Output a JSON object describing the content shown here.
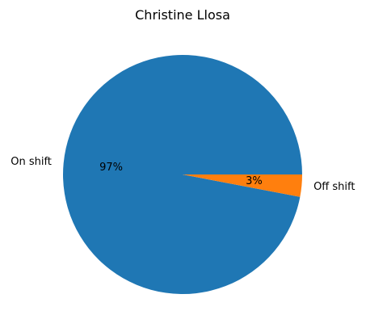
{
  "chart_data": {
    "type": "pie",
    "title": "Christine Llosa",
    "slices": [
      {
        "label": "On shift",
        "value": 97,
        "value_label": "97%",
        "color": "#1f77b4"
      },
      {
        "label": "Off shift",
        "value": 3,
        "value_label": "3%",
        "color": "#ff7f0e"
      }
    ],
    "start_angle_deg": 0,
    "direction": "counterclockwise"
  }
}
